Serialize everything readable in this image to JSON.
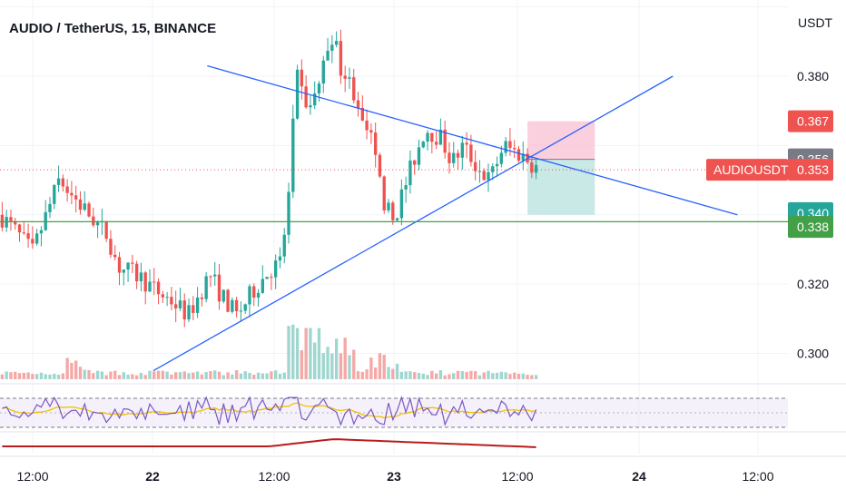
{
  "title": "AUDIO / TetherUS, 15, BINANCE",
  "currency": "USDT",
  "symbol_tag": "AUDIOUSDT",
  "colors": {
    "up": "#26a69a",
    "down": "#ef5350",
    "trendline": "#2962ff",
    "support": "#43a047",
    "rsi": "#7e57c2",
    "rsi_ma": "#f2c200",
    "lower_line": "#b71c1c",
    "stop_zone": "#f8bbd0",
    "target_zone": "#b2dfdb"
  },
  "chart_data": {
    "type": "candlestick",
    "pair": "AUDIO / TetherUS",
    "interval": "15",
    "exchange": "BINANCE",
    "ylim": [
      0.292,
      0.402
    ],
    "y_ticks": [
      "0.380",
      "0.320",
      "0.300"
    ],
    "x_ticks": [
      "12:00",
      "22",
      "12:00",
      "23",
      "12:00",
      "24",
      "12:00"
    ],
    "price_labels": [
      {
        "value": "0.367",
        "kind": "stop"
      },
      {
        "value": "0.356",
        "kind": "entry"
      },
      {
        "value": "0.353",
        "kind": "last"
      },
      {
        "value": "0.340",
        "kind": "target"
      },
      {
        "value": "0.338",
        "kind": "support"
      }
    ],
    "price_path": [
      {
        "t": 0,
        "p": 0.34
      },
      {
        "t": 0.03,
        "p": 0.335
      },
      {
        "t": 0.06,
        "p": 0.329
      },
      {
        "t": 0.11,
        "p": 0.35
      },
      {
        "t": 0.16,
        "p": 0.341
      },
      {
        "t": 0.2,
        "p": 0.334
      },
      {
        "t": 0.22,
        "p": 0.325
      },
      {
        "t": 0.26,
        "p": 0.322
      },
      {
        "t": 0.29,
        "p": 0.318
      },
      {
        "t": 0.32,
        "p": 0.315
      },
      {
        "t": 0.35,
        "p": 0.311
      },
      {
        "t": 0.39,
        "p": 0.323
      },
      {
        "t": 0.41,
        "p": 0.317
      },
      {
        "t": 0.44,
        "p": 0.311
      },
      {
        "t": 0.47,
        "p": 0.318
      },
      {
        "t": 0.5,
        "p": 0.324
      },
      {
        "t": 0.52,
        "p": 0.326
      },
      {
        "t": 0.535,
        "p": 0.342
      },
      {
        "t": 0.55,
        "p": 0.38
      },
      {
        "t": 0.575,
        "p": 0.37
      },
      {
        "t": 0.6,
        "p": 0.382
      },
      {
        "t": 0.615,
        "p": 0.393
      },
      {
        "t": 0.635,
        "p": 0.382
      },
      {
        "t": 0.66,
        "p": 0.375
      },
      {
        "t": 0.69,
        "p": 0.361
      },
      {
        "t": 0.715,
        "p": 0.343
      },
      {
        "t": 0.73,
        "p": 0.338
      },
      {
        "t": 0.76,
        "p": 0.352
      },
      {
        "t": 0.79,
        "p": 0.365
      },
      {
        "t": 0.82,
        "p": 0.362
      },
      {
        "t": 0.84,
        "p": 0.355
      },
      {
        "t": 0.86,
        "p": 0.36
      },
      {
        "t": 0.89,
        "p": 0.353
      },
      {
        "t": 0.91,
        "p": 0.35
      },
      {
        "t": 0.935,
        "p": 0.36
      },
      {
        "t": 0.96,
        "p": 0.358
      },
      {
        "t": 0.98,
        "p": 0.356
      },
      {
        "t": 1.0,
        "p": 0.353
      }
    ],
    "drawings": {
      "upper_trendline": [
        {
          "t": 0.385,
          "p": 0.383
        },
        {
          "t": 1.37,
          "p": 0.34
        }
      ],
      "lower_trendline": [
        {
          "t": 0.285,
          "p": 0.295
        },
        {
          "t": 1.25,
          "p": 0.38
        }
      ],
      "support_line": 0.338,
      "position": {
        "t_start": 0.98,
        "t_end": 1.105,
        "entry": 0.356,
        "stop": 0.367,
        "target": 0.34
      }
    },
    "indicators": [
      "Volume",
      "RSI",
      "Moving line"
    ]
  }
}
